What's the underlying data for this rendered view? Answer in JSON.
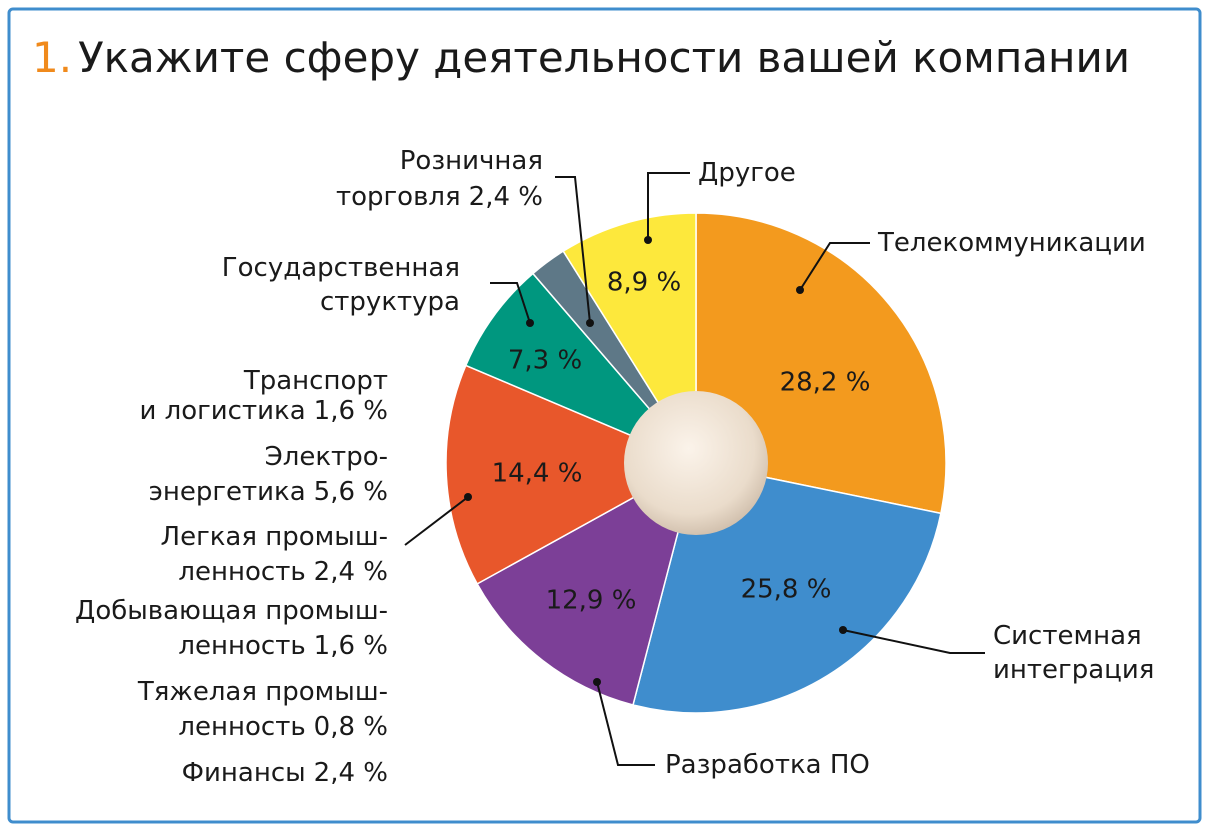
{
  "chart_data": {
    "type": "pie",
    "title_number": "1.",
    "title": "Укажите сферу деятельности вашей компании",
    "slices": [
      {
        "name": [
          "Телекоммуникации"
        ],
        "value": 28.2,
        "value_label": "28,2 %",
        "color": "#f39a1e"
      },
      {
        "name": [
          "Системная",
          "интеграция"
        ],
        "value": 25.8,
        "value_label": "25,8 %",
        "color": "#3f8dcd"
      },
      {
        "name": [
          "Разработка ПО"
        ],
        "value": 12.9,
        "value_label": "12,9 %",
        "color": "#7c3f97"
      },
      {
        "value": 14.4,
        "value_label": "14,4 %",
        "color": "#e8572b",
        "breakdown": [
          {
            "name": [
              "Транспорт",
              "и логистика"
            ],
            "value": 1.6,
            "value_label": "1,6 %"
          },
          {
            "name": [
              "Электро-",
              "энергетика"
            ],
            "value": 5.6,
            "value_label": "5,6 %"
          },
          {
            "name": [
              "Легкая промыш-",
              "ленность"
            ],
            "value": 2.4,
            "value_label": "2,4 %"
          },
          {
            "name": [
              "Добывающая промыш-",
              "ленность"
            ],
            "value": 1.6,
            "value_label": "1,6 %"
          },
          {
            "name": [
              "Тяжелая промыш-",
              "ленность"
            ],
            "value": 0.8,
            "value_label": "0,8 %"
          },
          {
            "name": [
              "Финансы"
            ],
            "value": 2.4,
            "value_label": "2,4 %"
          }
        ]
      },
      {
        "name": [
          "Государственная",
          "структура"
        ],
        "value": 7.3,
        "value_label": "7,3 %",
        "color": "#00977f"
      },
      {
        "name": [
          "Розничная",
          "торговля"
        ],
        "value": 2.4,
        "value_label": "2,4 %",
        "color": "#5e7887"
      },
      {
        "name": [
          "Другое"
        ],
        "value": 8.9,
        "value_label": "8,9 %",
        "color": "#fde83c"
      }
    ]
  }
}
